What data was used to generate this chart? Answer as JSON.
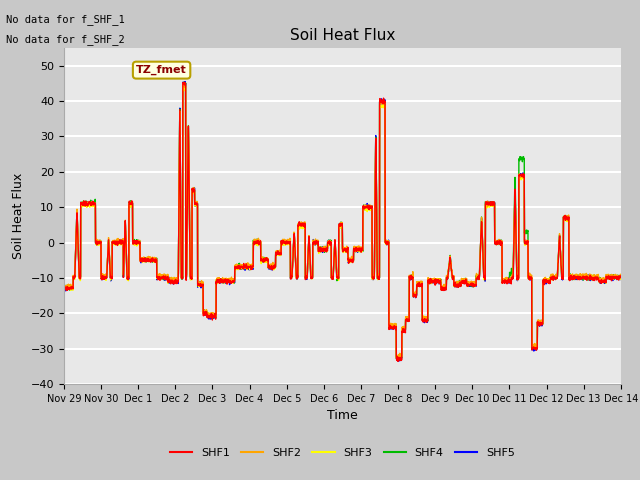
{
  "title": "Soil Heat Flux",
  "ylabel": "Soil Heat Flux",
  "xlabel": "Time",
  "annotation_line1": "No data for f_SHF_1",
  "annotation_line2": "No data for f_SHF_2",
  "legend_label": "TZ_fmet",
  "series_labels": [
    "SHF1",
    "SHF2",
    "SHF3",
    "SHF4",
    "SHF5"
  ],
  "series_colors": [
    "red",
    "orange",
    "yellow",
    "#00bb00",
    "blue"
  ],
  "ylim": [
    -40,
    55
  ],
  "yticks": [
    -40,
    -30,
    -20,
    -10,
    0,
    10,
    20,
    30,
    40,
    50
  ],
  "xlim": [
    0,
    15
  ],
  "tick_positions": [
    0,
    1,
    2,
    3,
    4,
    5,
    6,
    7,
    8,
    9,
    10,
    11,
    12,
    13,
    14,
    15
  ],
  "tick_labels": [
    "Nov 29",
    "Nov 30",
    "Dec 1",
    "Dec 2",
    "Dec 3",
    "Dec 4",
    "Dec 5",
    "Dec 6",
    "Dec 7",
    "Dec 8",
    "Dec 9",
    "Dec 10",
    "Dec 11",
    "Dec 12",
    "Dec 13",
    "Dec 14"
  ],
  "fig_bg": "#c8c8c8",
  "ax_bg": "#e8e8e8",
  "grid_color": "white",
  "title_fontsize": 11,
  "label_fontsize": 9,
  "tick_fontsize": 7,
  "legend_fontsize": 8,
  "linewidth": 1.0
}
